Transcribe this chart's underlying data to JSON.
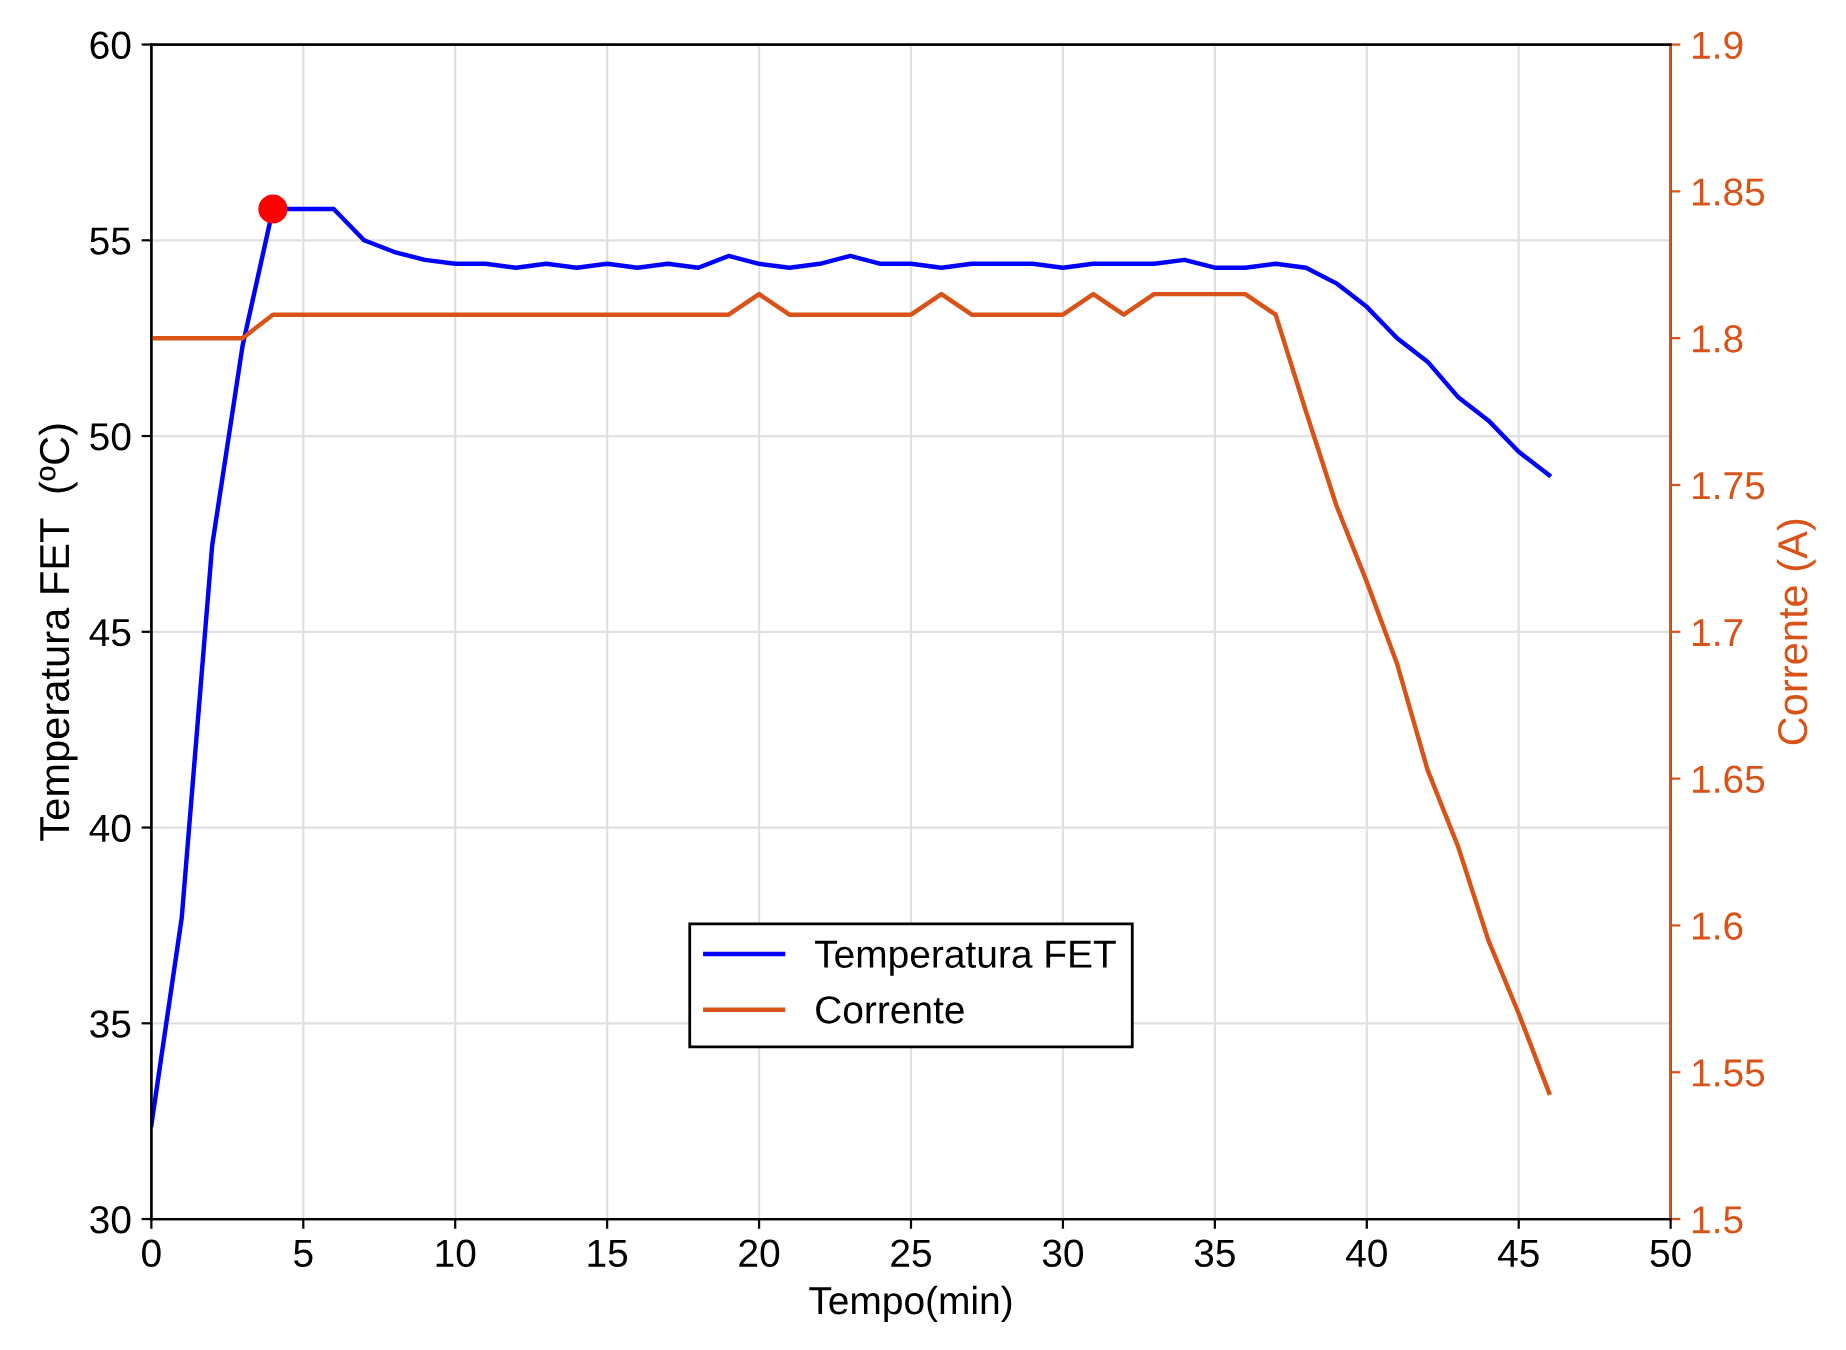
{
  "chart_data": {
    "type": "line",
    "xlabel": "Tempo(min)",
    "ylabel": "Temperatura FET  (ºC)",
    "y2label": "Corrente (A)",
    "x": [
      0,
      1,
      2,
      3,
      4,
      5,
      6,
      7,
      8,
      9,
      10,
      11,
      12,
      13,
      14,
      15,
      16,
      17,
      18,
      19,
      20,
      21,
      22,
      23,
      24,
      25,
      26,
      27,
      28,
      29,
      30,
      31,
      32,
      33,
      34,
      35,
      36,
      37,
      38,
      39,
      40,
      41,
      42,
      43,
      44,
      45,
      46
    ],
    "series": [
      {
        "name": "Temperatura FET",
        "color": "#0000ff",
        "values": [
          32.4,
          37.7,
          47.2,
          52.3,
          55.8,
          55.8,
          55.8,
          55.0,
          54.7,
          54.5,
          54.4,
          54.4,
          54.3,
          54.4,
          54.3,
          54.4,
          54.3,
          54.4,
          54.3,
          54.6,
          54.4,
          54.3,
          54.4,
          54.6,
          54.4,
          54.4,
          54.3,
          54.4,
          54.4,
          54.4,
          54.3,
          54.4,
          54.4,
          54.4,
          54.5,
          54.3,
          54.3,
          54.4,
          54.3,
          53.9,
          53.3,
          52.5,
          51.9,
          51.0,
          50.4,
          49.6,
          49.0
        ]
      },
      {
        "name": "Corrente",
        "color": "#d95319",
        "axis": "y2",
        "values": [
          1.8,
          1.8,
          1.8,
          1.8,
          1.808,
          1.808,
          1.808,
          1.808,
          1.808,
          1.808,
          1.808,
          1.808,
          1.808,
          1.808,
          1.808,
          1.808,
          1.808,
          1.808,
          1.808,
          1.808,
          1.815,
          1.808,
          1.808,
          1.808,
          1.808,
          1.808,
          1.815,
          1.808,
          1.808,
          1.808,
          1.808,
          1.815,
          1.808,
          1.815,
          1.815,
          1.815,
          1.815,
          1.808,
          1.775,
          1.743,
          1.717,
          1.689,
          1.653,
          1.627,
          1.595,
          1.57,
          1.543
        ]
      },
      {
        "type": "scatter",
        "color": "#ff0000",
        "x": [
          4
        ],
        "values": [
          55.8
        ],
        "marker": "circle"
      }
    ],
    "xlim": [
      0,
      50
    ],
    "xticks": [
      0,
      5,
      10,
      15,
      20,
      25,
      30,
      35,
      40,
      45,
      50
    ],
    "ylim": [
      30,
      60
    ],
    "yticks": [
      30,
      35,
      40,
      45,
      50,
      55,
      60
    ],
    "y2lim": [
      1.5,
      1.9
    ],
    "y2ticks": [
      1.5,
      1.55,
      1.6,
      1.65,
      1.7,
      1.75,
      1.8,
      1.85,
      1.9
    ],
    "grid": true,
    "legend": "bottom"
  }
}
